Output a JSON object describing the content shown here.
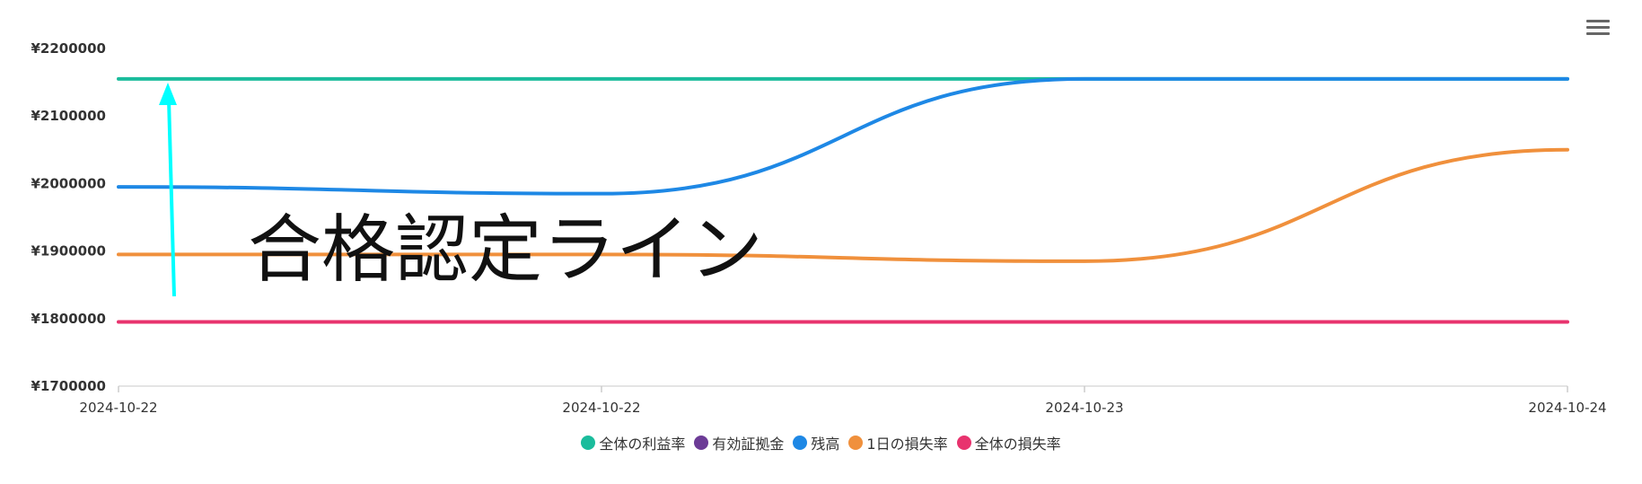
{
  "toolbar": {
    "menu_icon": "hamburger-menu-icon"
  },
  "chart_data": {
    "type": "line",
    "title": "",
    "xlabel": "",
    "ylabel": "",
    "categories": [
      "2024-10-22",
      "2024-10-22",
      "2024-10-23",
      "2024-10-24"
    ],
    "ylim": [
      1700000,
      2200000
    ],
    "y_ticks": [
      1700000,
      1800000,
      1900000,
      2000000,
      2100000,
      2200000
    ],
    "y_tick_labels": [
      "¥1700000",
      "¥1800000",
      "¥1900000",
      "¥2000000",
      "¥2100000",
      "¥2200000"
    ],
    "grid": false,
    "legend_position": "bottom-center",
    "series": [
      {
        "name": "全体の利益率",
        "color": "#1abc9c",
        "values": [
          2155000,
          2155000,
          2155000,
          2155000
        ]
      },
      {
        "name": "有効証拠金",
        "color": "#6c3b96",
        "values": [
          null,
          null,
          null,
          null
        ]
      },
      {
        "name": "残高",
        "color": "#1e88e5",
        "values": [
          1995000,
          1985000,
          2155000,
          2155000
        ]
      },
      {
        "name": "1日の損失率",
        "color": "#f0903c",
        "values": [
          1895000,
          1895000,
          1885000,
          2050000
        ]
      },
      {
        "name": "全体の損失率",
        "color": "#e8336e",
        "values": [
          1795000,
          1795000,
          1795000,
          1795000
        ]
      }
    ],
    "annotation": {
      "text": "合格認定ライン",
      "arrow_color": "#00ffff"
    }
  }
}
